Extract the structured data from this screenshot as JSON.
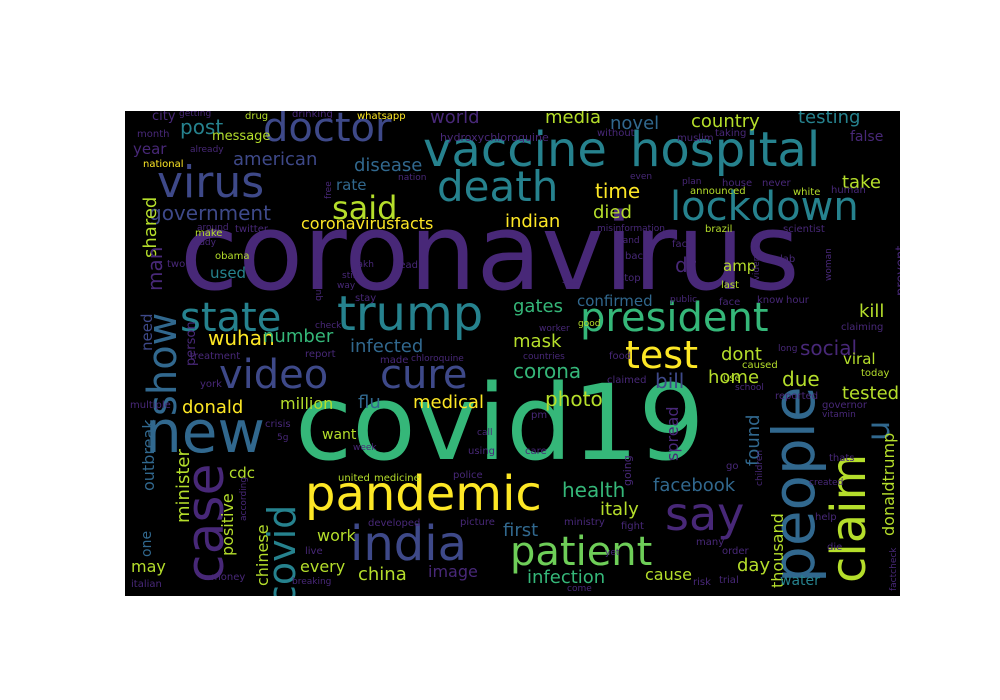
{
  "palette": {
    "background": "#000000",
    "purple": "#440154",
    "indigo": "#482878",
    "blue": "#3e4989",
    "steel": "#31688e",
    "teal": "#26828e",
    "sea": "#1f9e89",
    "green": "#35b779",
    "lime": "#6ece58",
    "yellowgreen": "#b5de2b",
    "yellow": "#fde725"
  },
  "words": [
    {
      "text": "coronavirus",
      "color": "#482878",
      "vertical": false
    },
    {
      "text": "covid19",
      "color": "#35b779",
      "vertical": false
    },
    {
      "text": "vaccine",
      "color": "#26828e",
      "vertical": false
    },
    {
      "text": "hospital",
      "color": "#26828e",
      "vertical": false
    },
    {
      "text": "new",
      "color": "#31688e",
      "vertical": false
    },
    {
      "text": "people",
      "color": "#31688e",
      "vertical": true
    },
    {
      "text": "case",
      "color": "#482878",
      "vertical": true
    },
    {
      "text": "pandemic",
      "color": "#fde725",
      "vertical": false
    },
    {
      "text": "india",
      "color": "#3e4989",
      "vertical": false
    },
    {
      "text": "say",
      "color": "#482878",
      "vertical": false
    },
    {
      "text": "claim",
      "color": "#b5de2b",
      "vertical": true
    },
    {
      "text": "trump",
      "color": "#26828e",
      "vertical": false
    },
    {
      "text": "president",
      "color": "#35b779",
      "vertical": false
    },
    {
      "text": "virus",
      "color": "#3e4989",
      "vertical": false
    },
    {
      "text": "death",
      "color": "#26828e",
      "vertical": false
    },
    {
      "text": "lockdown",
      "color": "#26828e",
      "vertical": false
    },
    {
      "text": "doctor",
      "color": "#3e4989",
      "vertical": false
    },
    {
      "text": "state",
      "color": "#26828e",
      "vertical": false
    },
    {
      "text": "video",
      "color": "#3e4989",
      "vertical": false
    },
    {
      "text": "cure",
      "color": "#3e4989",
      "vertical": false
    },
    {
      "text": "test",
      "color": "#fde725",
      "vertical": false
    },
    {
      "text": "patient",
      "color": "#6ece58",
      "vertical": false
    },
    {
      "text": "show",
      "color": "#31688e",
      "vertical": true
    },
    {
      "text": "covid",
      "color": "#26828e",
      "vertical": true
    },
    {
      "text": "said",
      "color": "#b5de2b",
      "vertical": false
    },
    {
      "text": "u",
      "color": "#31688e",
      "vertical": true
    },
    {
      "text": "government",
      "color": "#3e4989",
      "vertical": false
    },
    {
      "text": "post",
      "color": "#26828e",
      "vertical": false
    },
    {
      "text": "world",
      "color": "#482878",
      "vertical": false
    },
    {
      "text": "media",
      "color": "#b5de2b",
      "vertical": false
    },
    {
      "text": "novel",
      "color": "#31688e",
      "vertical": false
    },
    {
      "text": "country",
      "color": "#b5de2b",
      "vertical": false
    },
    {
      "text": "testing",
      "color": "#26828e",
      "vertical": false
    },
    {
      "text": "city",
      "color": "#482878",
      "vertical": false
    },
    {
      "text": "year",
      "color": "#482878",
      "vertical": false
    },
    {
      "text": "message",
      "color": "#b5de2b",
      "vertical": false
    },
    {
      "text": "american",
      "color": "#3e4989",
      "vertical": false
    },
    {
      "text": "disease",
      "color": "#31688e",
      "vertical": false
    },
    {
      "text": "rate",
      "color": "#31688e",
      "vertical": false
    },
    {
      "text": "time",
      "color": "#fde725",
      "vertical": false
    },
    {
      "text": "take",
      "color": "#b5de2b",
      "vertical": false
    },
    {
      "text": "false",
      "color": "#482878",
      "vertical": false
    },
    {
      "text": "died",
      "color": "#b5de2b",
      "vertical": false
    },
    {
      "text": "indian",
      "color": "#fde725",
      "vertical": false
    },
    {
      "text": "coronavirusfacts",
      "color": "#fde725",
      "vertical": false
    },
    {
      "text": "shared",
      "color": "#b5de2b",
      "vertical": true
    },
    {
      "text": "man",
      "color": "#482878",
      "vertical": true
    },
    {
      "text": "used",
      "color": "#26828e",
      "vertical": false
    },
    {
      "text": "dr",
      "color": "#482878",
      "vertical": false
    },
    {
      "text": "amp",
      "color": "#b5de2b",
      "vertical": false
    },
    {
      "text": "prevent",
      "color": "#482878",
      "vertical": true
    },
    {
      "text": "gates",
      "color": "#35b779",
      "vertical": false
    },
    {
      "text": "confirmed",
      "color": "#31688e",
      "vertical": false
    },
    {
      "text": "kill",
      "color": "#b5de2b",
      "vertical": false
    },
    {
      "text": "wuhan",
      "color": "#fde725",
      "vertical": false
    },
    {
      "text": "number",
      "color": "#35b779",
      "vertical": false
    },
    {
      "text": "mask",
      "color": "#b5de2b",
      "vertical": false
    },
    {
      "text": "infected",
      "color": "#31688e",
      "vertical": false
    },
    {
      "text": "dont",
      "color": "#b5de2b",
      "vertical": false
    },
    {
      "text": "social",
      "color": "#482878",
      "vertical": false
    },
    {
      "text": "corona",
      "color": "#35b779",
      "vertical": false
    },
    {
      "text": "bill",
      "color": "#3e4989",
      "vertical": false
    },
    {
      "text": "home",
      "color": "#b5de2b",
      "vertical": false
    },
    {
      "text": "due",
      "color": "#b5de2b",
      "vertical": false
    },
    {
      "text": "viral",
      "color": "#b5de2b",
      "vertical": false
    },
    {
      "text": "need",
      "color": "#3e4989",
      "vertical": true
    },
    {
      "text": "person",
      "color": "#482878",
      "vertical": true
    },
    {
      "text": "photo",
      "color": "#b5de2b",
      "vertical": false
    },
    {
      "text": "tested",
      "color": "#b5de2b",
      "vertical": false
    },
    {
      "text": "donald",
      "color": "#fde725",
      "vertical": false
    },
    {
      "text": "million",
      "color": "#b5de2b",
      "vertical": false
    },
    {
      "text": "flu",
      "color": "#31688e",
      "vertical": false
    },
    {
      "text": "medical",
      "color": "#fde725",
      "vertical": false
    },
    {
      "text": "found",
      "color": "#31688e",
      "vertical": true
    },
    {
      "text": "spread",
      "color": "#482878",
      "vertical": true
    },
    {
      "text": "want",
      "color": "#b5de2b",
      "vertical": false
    },
    {
      "text": "outbreak",
      "color": "#31688e",
      "vertical": true
    },
    {
      "text": "minister",
      "color": "#b5de2b",
      "vertical": true
    },
    {
      "text": "cdc",
      "color": "#b5de2b",
      "vertical": false
    },
    {
      "text": "positive",
      "color": "#b5de2b",
      "vertical": true
    },
    {
      "text": "chinese",
      "color": "#b5de2b",
      "vertical": true
    },
    {
      "text": "health",
      "color": "#35b779",
      "vertical": false
    },
    {
      "text": "facebook",
      "color": "#31688e",
      "vertical": false
    },
    {
      "text": "italy",
      "color": "#b5de2b",
      "vertical": false
    },
    {
      "text": "donaldtrump",
      "color": "#b5de2b",
      "vertical": true
    },
    {
      "text": "one",
      "color": "#31688e",
      "vertical": true
    },
    {
      "text": "work",
      "color": "#b5de2b",
      "vertical": false
    },
    {
      "text": "first",
      "color": "#31688e",
      "vertical": false
    },
    {
      "text": "thousand",
      "color": "#b5de2b",
      "vertical": true
    },
    {
      "text": "day",
      "color": "#b5de2b",
      "vertical": false
    },
    {
      "text": "every",
      "color": "#b5de2b",
      "vertical": false
    },
    {
      "text": "china",
      "color": "#b5de2b",
      "vertical": false
    },
    {
      "text": "image",
      "color": "#482878",
      "vertical": false
    },
    {
      "text": "infection",
      "color": "#35b779",
      "vertical": false
    },
    {
      "text": "cause",
      "color": "#b5de2b",
      "vertical": false
    },
    {
      "text": "water",
      "color": "#26828e",
      "vertical": false
    },
    {
      "text": "may",
      "color": "#b5de2b",
      "vertical": false
    },
    {
      "text": "going",
      "color": "#482878",
      "vertical": true
    },
    {
      "text": "hydroxychloroquine",
      "color": "#482878",
      "vertical": false
    },
    {
      "text": "whatsapp",
      "color": "#fde725",
      "vertical": false
    },
    {
      "text": "drinking",
      "color": "#482878",
      "vertical": false
    },
    {
      "text": "drug",
      "color": "#b5de2b",
      "vertical": false
    },
    {
      "text": "getting",
      "color": "#482878",
      "vertical": false
    },
    {
      "text": "month",
      "color": "#482878",
      "vertical": false
    },
    {
      "text": "already",
      "color": "#482878",
      "vertical": false
    },
    {
      "text": "national",
      "color": "#fde725",
      "vertical": false
    },
    {
      "text": "nation",
      "color": "#482878",
      "vertical": false
    },
    {
      "text": "free",
      "color": "#482878",
      "vertical": true
    },
    {
      "text": "muslim",
      "color": "#482878",
      "vertical": false
    },
    {
      "text": "without",
      "color": "#482878",
      "vertical": false
    },
    {
      "text": "taking",
      "color": "#482878",
      "vertical": false
    },
    {
      "text": "even",
      "color": "#482878",
      "vertical": false
    },
    {
      "text": "plan",
      "color": "#482878",
      "vertical": false
    },
    {
      "text": "house",
      "color": "#482878",
      "vertical": false
    },
    {
      "text": "announced",
      "color": "#b5de2b",
      "vertical": false
    },
    {
      "text": "never",
      "color": "#482878",
      "vertical": false
    },
    {
      "text": "white",
      "color": "#b5de2b",
      "vertical": false
    },
    {
      "text": "human",
      "color": "#482878",
      "vertical": false
    },
    {
      "text": "make",
      "color": "#b5de2b",
      "vertical": false
    },
    {
      "text": "study",
      "color": "#482878",
      "vertical": false
    },
    {
      "text": "around",
      "color": "#482878",
      "vertical": false
    },
    {
      "text": "twitter",
      "color": "#482878",
      "vertical": false
    },
    {
      "text": "misinformation",
      "color": "#482878",
      "vertical": false
    },
    {
      "text": "brazil",
      "color": "#b5de2b",
      "vertical": false
    },
    {
      "text": "scientist",
      "color": "#482878",
      "vertical": false
    },
    {
      "text": "hand",
      "color": "#482878",
      "vertical": false
    },
    {
      "text": "fact",
      "color": "#482878",
      "vertical": false
    },
    {
      "text": "evidence",
      "color": "#482878",
      "vertical": true
    },
    {
      "text": "woman",
      "color": "#482878",
      "vertical": true
    },
    {
      "text": "obama",
      "color": "#b5de2b",
      "vertical": false
    },
    {
      "text": "two",
      "color": "#482878",
      "vertical": false
    },
    {
      "text": "quarantine",
      "color": "#482878",
      "vertical": true
    },
    {
      "text": "lakh",
      "color": "#482878",
      "vertical": false
    },
    {
      "text": "dead",
      "color": "#482878",
      "vertical": false
    },
    {
      "text": "back",
      "color": "#482878",
      "vertical": false
    },
    {
      "text": "still",
      "color": "#482878",
      "vertical": false
    },
    {
      "text": "way",
      "color": "#482878",
      "vertical": false
    },
    {
      "text": "last",
      "color": "#b5de2b",
      "vertical": false
    },
    {
      "text": "lab",
      "color": "#482878",
      "vertical": false
    },
    {
      "text": "see",
      "color": "#482878",
      "vertical": false
    },
    {
      "text": "stop",
      "color": "#482878",
      "vertical": false
    },
    {
      "text": "stay",
      "color": "#482878",
      "vertical": false
    },
    {
      "text": "public",
      "color": "#482878",
      "vertical": false
    },
    {
      "text": "face",
      "color": "#482878",
      "vertical": false
    },
    {
      "text": "know",
      "color": "#482878",
      "vertical": false
    },
    {
      "text": "hour",
      "color": "#482878",
      "vertical": false
    },
    {
      "text": "check",
      "color": "#482878",
      "vertical": false
    },
    {
      "text": "worker",
      "color": "#482878",
      "vertical": false
    },
    {
      "text": "good",
      "color": "#b5de2b",
      "vertical": false
    },
    {
      "text": "claiming",
      "color": "#482878",
      "vertical": false
    },
    {
      "text": "long",
      "color": "#482878",
      "vertical": false
    },
    {
      "text": "treatment",
      "color": "#482878",
      "vertical": false
    },
    {
      "text": "report",
      "color": "#482878",
      "vertical": false
    },
    {
      "text": "made",
      "color": "#482878",
      "vertical": false
    },
    {
      "text": "chloroquine",
      "color": "#482878",
      "vertical": false
    },
    {
      "text": "countries",
      "color": "#482878",
      "vertical": false
    },
    {
      "text": "food",
      "color": "#482878",
      "vertical": false
    },
    {
      "text": "caused",
      "color": "#b5de2b",
      "vertical": false
    },
    {
      "text": "use",
      "color": "#b5de2b",
      "vertical": false
    },
    {
      "text": "today",
      "color": "#b5de2b",
      "vertical": false
    },
    {
      "text": "york",
      "color": "#482878",
      "vertical": false
    },
    {
      "text": "claimed",
      "color": "#482878",
      "vertical": false
    },
    {
      "text": "school",
      "color": "#482878",
      "vertical": false
    },
    {
      "text": "reported",
      "color": "#482878",
      "vertical": false
    },
    {
      "text": "multiple",
      "color": "#482878",
      "vertical": false
    },
    {
      "text": "pm",
      "color": "#482878",
      "vertical": false
    },
    {
      "text": "governor",
      "color": "#482878",
      "vertical": false
    },
    {
      "text": "vitamin",
      "color": "#482878",
      "vertical": false
    },
    {
      "text": "crisis",
      "color": "#482878",
      "vertical": false
    },
    {
      "text": "5g",
      "color": "#482878",
      "vertical": false
    },
    {
      "text": "week",
      "color": "#482878",
      "vertical": false
    },
    {
      "text": "call",
      "color": "#482878",
      "vertical": false
    },
    {
      "text": "using",
      "color": "#482878",
      "vertical": false
    },
    {
      "text": "care",
      "color": "#482878",
      "vertical": false
    },
    {
      "text": "children",
      "color": "#482878",
      "vertical": true
    },
    {
      "text": "go",
      "color": "#482878",
      "vertical": false
    },
    {
      "text": "thats",
      "color": "#482878",
      "vertical": false
    },
    {
      "text": "united",
      "color": "#b5de2b",
      "vertical": false
    },
    {
      "text": "medicine",
      "color": "#b5de2b",
      "vertical": false
    },
    {
      "text": "police",
      "color": "#482878",
      "vertical": false
    },
    {
      "text": "created",
      "color": "#482878",
      "vertical": false
    },
    {
      "text": "according",
      "color": "#482878",
      "vertical": true
    },
    {
      "text": "developed",
      "color": "#482878",
      "vertical": false
    },
    {
      "text": "picture",
      "color": "#482878",
      "vertical": false
    },
    {
      "text": "ministry",
      "color": "#482878",
      "vertical": false
    },
    {
      "text": "fight",
      "color": "#482878",
      "vertical": false
    },
    {
      "text": "help",
      "color": "#482878",
      "vertical": false
    },
    {
      "text": "live",
      "color": "#482878",
      "vertical": false
    },
    {
      "text": "yet",
      "color": "#482878",
      "vertical": false
    },
    {
      "text": "many",
      "color": "#482878",
      "vertical": false
    },
    {
      "text": "order",
      "color": "#482878",
      "vertical": false
    },
    {
      "text": "die",
      "color": "#482878",
      "vertical": false
    },
    {
      "text": "factcheck",
      "color": "#482878",
      "vertical": true
    },
    {
      "text": "money",
      "color": "#482878",
      "vertical": false
    },
    {
      "text": "breaking",
      "color": "#482878",
      "vertical": false
    },
    {
      "text": "risk",
      "color": "#482878",
      "vertical": false
    },
    {
      "text": "trial",
      "color": "#482878",
      "vertical": false
    },
    {
      "text": "come",
      "color": "#482878",
      "vertical": false
    },
    {
      "text": "italian",
      "color": "#482878",
      "vertical": false
    }
  ]
}
